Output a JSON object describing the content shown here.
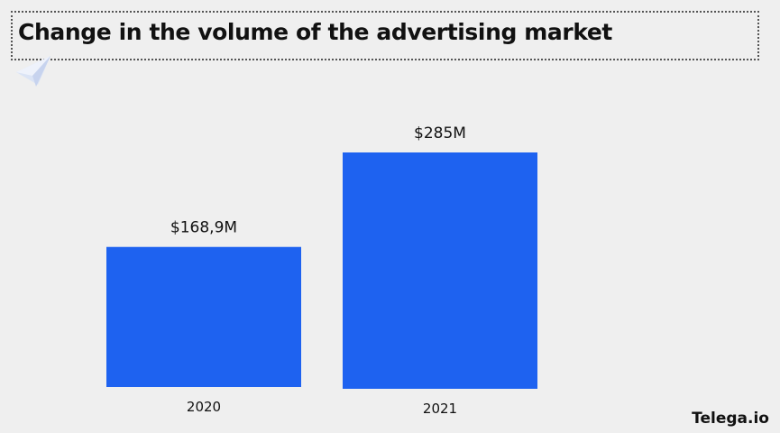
{
  "chart_data": {
    "type": "bar",
    "title": "Change in the volume of the advertising market",
    "categories": [
      "2020",
      "2021"
    ],
    "values": [
      168.9,
      285
    ],
    "data_labels": [
      "$168,9M",
      "$285M"
    ],
    "unit": "$M",
    "xlabel": "",
    "ylabel": "",
    "grid": false,
    "legend": "none",
    "bar_color": "#1e62f0"
  },
  "brand": {
    "name": "Telega.io"
  },
  "icons": {
    "decoration": "paper-plane-icon"
  }
}
